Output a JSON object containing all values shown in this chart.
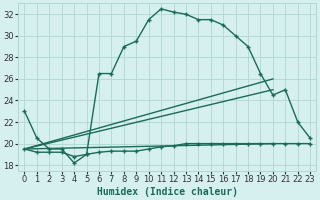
{
  "title": "",
  "xlabel": "Humidex (Indice chaleur)",
  "bg_color": "#d5f0ee",
  "grid_color": "#b0d8d0",
  "line_color": "#1a6b5a",
  "xlim": [
    -0.5,
    23.5
  ],
  "ylim": [
    17.5,
    33
  ],
  "xticks": [
    0,
    1,
    2,
    3,
    4,
    5,
    6,
    7,
    8,
    9,
    10,
    11,
    12,
    13,
    14,
    15,
    16,
    17,
    18,
    19,
    20,
    21,
    22,
    23
  ],
  "yticks": [
    18,
    20,
    22,
    24,
    26,
    28,
    30,
    32
  ],
  "curve1_x": [
    0,
    1,
    2,
    3,
    4,
    5,
    6,
    7,
    8,
    9,
    10,
    11,
    12,
    13,
    14,
    15,
    16,
    17,
    18,
    19,
    20,
    21,
    22,
    23
  ],
  "curve1_y": [
    23,
    20.5,
    19.5,
    19.5,
    18.2,
    19,
    26.5,
    26.5,
    29,
    29.5,
    31.5,
    32.5,
    32.2,
    32,
    31.5,
    31.5,
    31,
    30,
    29,
    26.5,
    24.5,
    25,
    22,
    20.5
  ],
  "curve2_x": [
    0,
    1,
    2,
    3,
    4,
    5,
    6,
    7,
    8,
    9,
    10,
    11,
    12,
    13,
    14,
    15,
    16,
    17,
    18,
    19,
    20,
    21,
    22,
    23
  ],
  "curve2_y": [
    19.5,
    19.2,
    19.2,
    19.2,
    18.8,
    19.0,
    19.2,
    19.3,
    19.3,
    19.3,
    19.5,
    19.7,
    19.8,
    20,
    20,
    20,
    20,
    20,
    20,
    20,
    20,
    20,
    20,
    20
  ],
  "line1_x": [
    0,
    20
  ],
  "line1_y": [
    19.5,
    20.0
  ],
  "line2_x": [
    0,
    20
  ],
  "line2_y": [
    19.5,
    26.0
  ],
  "line3_x": [
    0,
    20
  ],
  "line3_y": [
    19.5,
    25.0
  ],
  "xlabel_fontsize": 7,
  "tick_fontsize": 6,
  "line_width": 1.0,
  "marker_size": 3
}
